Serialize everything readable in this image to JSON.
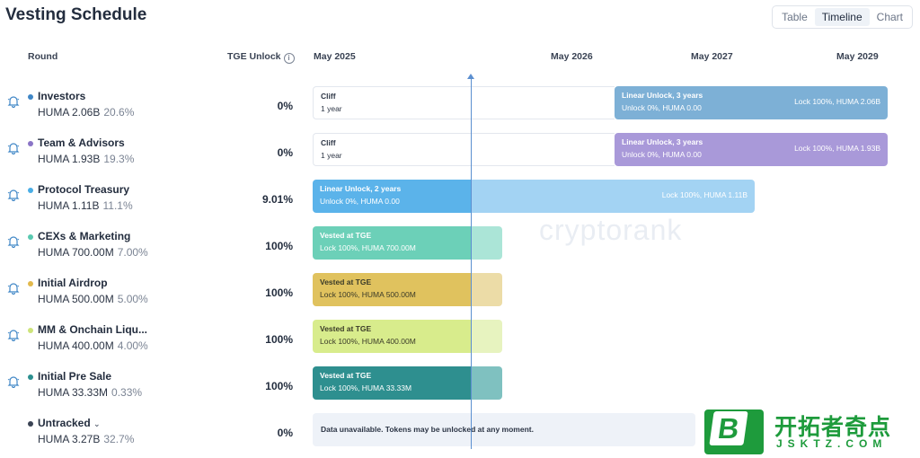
{
  "page_title": "Vesting Schedule",
  "view_toggle": [
    "Table",
    "Timeline",
    "Chart"
  ],
  "view_active": "Timeline",
  "headers": {
    "round": "Round",
    "tge_unlock": "TGE Unlock",
    "timeline_ticks": [
      "May 2025",
      "May 2026",
      "May 2027",
      "May 2029"
    ]
  },
  "rows": [
    {
      "name": "Investors",
      "amount": "HUMA 2.06B",
      "pct": "20.6%",
      "tge": "0%",
      "color": "#3f86c6",
      "cliff_title": "Cliff",
      "cliff_sub": "1 year",
      "bar_title": "Linear Unlock, 3 years",
      "bar_sub": "Unlock 0%, HUMA 0.00",
      "bar_right": "Lock 100%, HUMA 2.06B",
      "bar_color": "#7db0d6"
    },
    {
      "name": "Team & Advisors",
      "amount": "HUMA 1.93B",
      "pct": "19.3%",
      "tge": "0%",
      "color": "#8a74c6",
      "cliff_title": "Cliff",
      "cliff_sub": "1 year",
      "bar_title": "Linear Unlock, 3 years",
      "bar_sub": "Unlock 0%, HUMA 0.00",
      "bar_right": "Lock 100%, HUMA 1.93B",
      "bar_color": "#a999d9"
    },
    {
      "name": "Protocol Treasury",
      "amount": "HUMA 1.11B",
      "pct": "11.1%",
      "tge": "9.01%",
      "color": "#4aaee6",
      "bar_title": "Linear Unlock, 2 years",
      "bar_sub": "Unlock 0%, HUMA 0.00",
      "bar_right": "Lock 100%, HUMA 1.11B",
      "bar_color": "#5bb3ea",
      "bar_color_light": "#a3d3f3"
    },
    {
      "name": "CEXs & Marketing",
      "amount": "HUMA 700.00M",
      "pct": "7.00%",
      "tge": "100%",
      "color": "#59c9b0",
      "bar_title": "Vested at TGE",
      "bar_sub": "Lock 100%, HUMA 700.00M",
      "bar_color": "#6cd0b8",
      "bar_color_light": "#abe5d7"
    },
    {
      "name": "Initial Airdrop",
      "amount": "HUMA 500.00M",
      "pct": "5.00%",
      "tge": "100%",
      "color": "#e2b94c",
      "bar_title": "Vested at TGE",
      "bar_sub": "Lock 100%, HUMA 500.00M",
      "bar_color": "#e0c25e",
      "bar_color_light": "#ecdca7"
    },
    {
      "name": "MM & Onchain Liqu...",
      "amount": "HUMA 400.00M",
      "pct": "4.00%",
      "tge": "100%",
      "color": "#cde47a",
      "bar_title": "Vested at TGE",
      "bar_sub": "Lock 100%, HUMA 400.00M",
      "bar_color": "#d8ec8c",
      "bar_color_light": "#e7f3bf"
    },
    {
      "name": "Initial Pre Sale",
      "amount": "HUMA 33.33M",
      "pct": "0.33%",
      "tge": "100%",
      "color": "#2b8f8f",
      "bar_title": "Vested at TGE",
      "bar_sub": "Lock 100%, HUMA 33.33M",
      "bar_color": "#2e8f8f",
      "bar_color_light": "#7fc1c0"
    }
  ],
  "untracked": {
    "name": "Untracked",
    "amount": "HUMA 3.27B",
    "pct": "32.7%",
    "tge": "0%",
    "color": "#3a4354",
    "message": "Data unavailable. Tokens may be unlocked at any moment."
  },
  "watermark": "cryptorank",
  "logo": {
    "title": "开拓者奇点",
    "sub": "JSKTZ.COM",
    "letter": "B"
  }
}
